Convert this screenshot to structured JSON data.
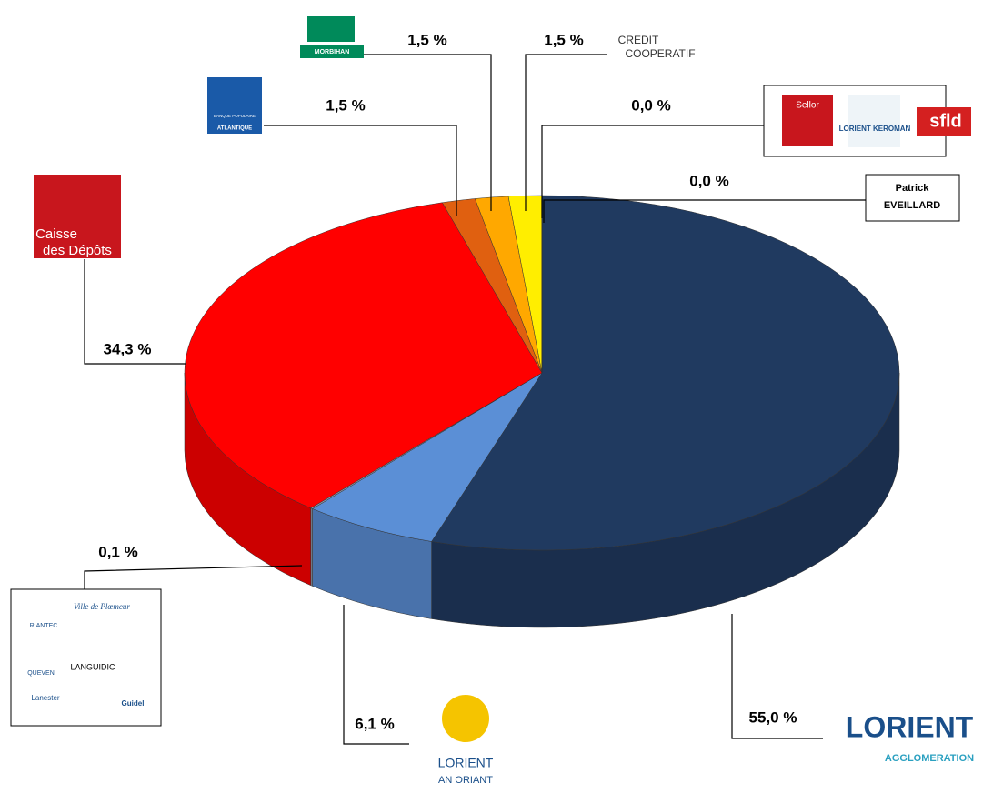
{
  "chart_data": {
    "type": "pie3d",
    "values": [
      55.0,
      6.1,
      0.1,
      34.3,
      1.5,
      1.5,
      1.5,
      0.0,
      0.0
    ],
    "value_labels": [
      "55,0 %",
      "6,1 %",
      "0,1 %",
      "34,3 %",
      "1,5 %",
      "1,5 %",
      "1,5 %",
      "0,0 %",
      "0,0 %"
    ],
    "colors": [
      "#203a60",
      "#5b8fd6",
      "#8a96a8",
      "#ff0000",
      "#e06010",
      "#ffa800",
      "#ffee00",
      "#ffee00",
      "#ffee00"
    ],
    "logos": [
      [
        "LORIENT",
        "AGGLOMERATION"
      ],
      [
        "LORIENT",
        "AN ORIANT"
      ],
      [
        "RIANTEC",
        "Ville de Plœmeur",
        "QUEVEN",
        "LANGUIDIC",
        "Lanester",
        "Guidel"
      ],
      [
        "Caisse",
        "des Dépôts"
      ],
      [
        "BANQUE POPULAIRE",
        "ATLANTIQUE"
      ],
      [
        "MORBIHAN"
      ],
      [
        "CREDIT",
        "COOPERATIF"
      ],
      [
        "Sellor",
        "LORIENT KEROMAN",
        "sfld"
      ],
      [
        "Patrick",
        "EVEILLARD"
      ]
    ]
  }
}
